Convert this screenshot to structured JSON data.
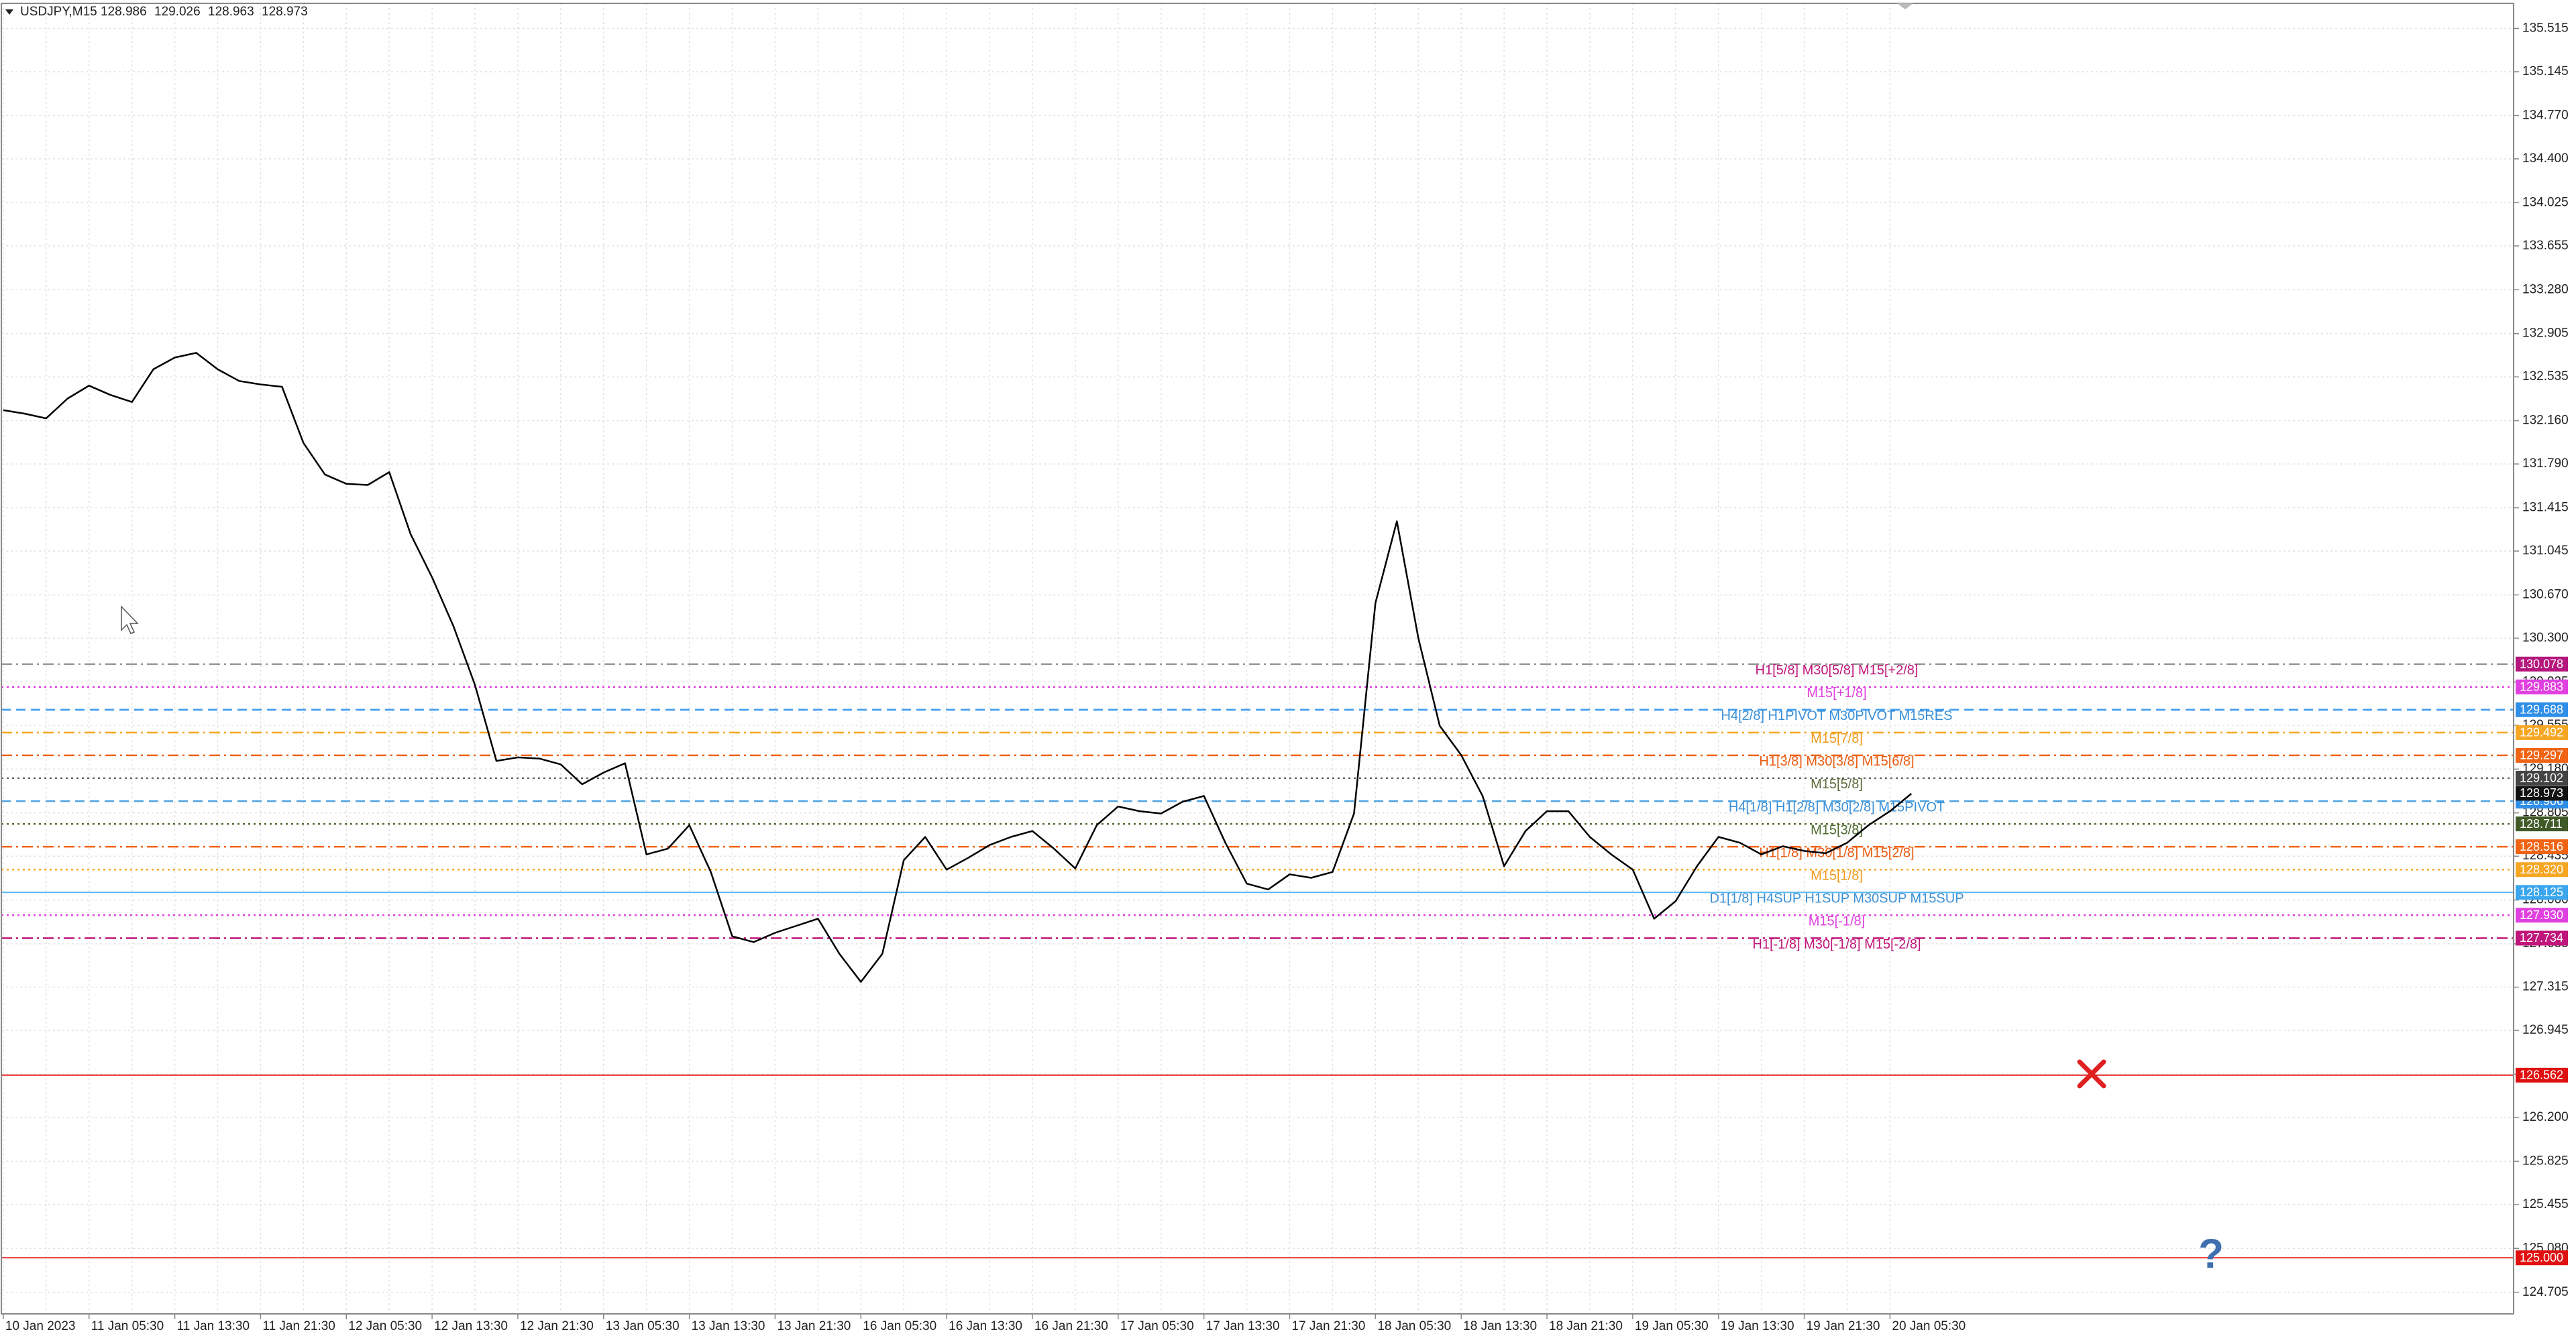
{
  "chart_data": {
    "type": "line",
    "title": "USDJPY,M15",
    "quote": [
      128.986,
      129.026,
      128.963,
      128.973
    ],
    "color": "#000000",
    "categories": [
      "10 Jan 2023",
      null,
      null,
      null,
      "11 Jan 05:30",
      null,
      null,
      null,
      "11 Jan 13:30",
      null,
      null,
      null,
      "11 Jan 21:30",
      null,
      null,
      null,
      "12 Jan 05:30",
      null,
      null,
      null,
      "12 Jan 13:30",
      null,
      null,
      null,
      "12 Jan 21:30",
      null,
      null,
      null,
      "13 Jan 05:30",
      null,
      null,
      null,
      "13 Jan 13:30",
      null,
      null,
      null,
      "13 Jan 21:30",
      null,
      null,
      null,
      "16 Jan 05:30",
      null,
      null,
      null,
      "16 Jan 13:30",
      null,
      null,
      null,
      "16 Jan 21:30",
      null,
      null,
      null,
      "17 Jan 05:30",
      null,
      null,
      null,
      "17 Jan 13:30",
      null,
      null,
      null,
      "17 Jan 21:30",
      null,
      null,
      null,
      "18 Jan 05:30",
      null,
      null,
      null,
      "18 Jan 13:30",
      null,
      null,
      null,
      "18 Jan 21:30",
      null,
      null,
      null,
      "19 Jan 05:30",
      null,
      null,
      null,
      "19 Jan 13:30",
      null,
      null,
      null,
      "19 Jan 21:30",
      null,
      null,
      null,
      "20 Jan 05:30",
      null
    ],
    "values": [
      132.25,
      132.22,
      132.18,
      132.35,
      132.46,
      132.38,
      132.32,
      132.6,
      132.7,
      132.74,
      132.6,
      132.5,
      132.47,
      132.45,
      131.97,
      131.7,
      131.62,
      131.61,
      131.72,
      131.19,
      130.82,
      130.4,
      129.9,
      129.25,
      129.28,
      129.27,
      129.22,
      129.05,
      129.15,
      129.23,
      128.45,
      128.5,
      128.7,
      128.3,
      127.75,
      127.7,
      127.78,
      127.84,
      127.9,
      127.6,
      127.36,
      127.6,
      128.4,
      128.6,
      128.32,
      128.42,
      128.53,
      128.6,
      128.65,
      128.5,
      128.33,
      128.7,
      128.86,
      128.82,
      128.8,
      128.9,
      128.95,
      128.55,
      128.2,
      128.15,
      128.28,
      128.25,
      128.3,
      128.8,
      130.6,
      131.3,
      130.3,
      129.55,
      129.3,
      128.95,
      128.35,
      128.65,
      128.82,
      128.82,
      128.6,
      128.45,
      128.32,
      127.9,
      128.05,
      128.35,
      128.6,
      128.55,
      128.45,
      128.52,
      128.48,
      128.46,
      128.55,
      128.7,
      128.82,
      128.97
    ],
    "ylim": [
      124.52,
      135.73
    ],
    "yticks": [
      135.515,
      135.145,
      {
        "value": 134.77,
        "label": "134.770"
      },
      {
        "value": 134.4,
        "label": "134.400"
      },
      134.025,
      133.655,
      {
        "value": 133.28,
        "label": "133.280"
      },
      132.905,
      132.535,
      {
        "value": 132.16,
        "label": "132.160"
      },
      {
        "value": 131.79,
        "label": "131.790"
      },
      131.415,
      131.045,
      {
        "value": 130.67,
        "label": "130.670"
      },
      {
        "value": 130.3,
        "label": "130.300"
      },
      129.925,
      129.555,
      {
        "value": 129.18,
        "label": "129.180"
      },
      128.805,
      128.435,
      {
        "value": 128.06,
        "label": "128.060"
      },
      127.685,
      127.315,
      126.945,
      {
        "value": 126.57,
        "label": "126.570"
      },
      {
        "value": 126.2,
        "label": "126.200"
      },
      125.825,
      125.455,
      {
        "value": 125.08,
        "label": "125.080"
      },
      124.705
    ],
    "grid": true,
    "levels": [
      {
        "label": "H1[5/8] M30[5/8] M15[+2/8]",
        "value": 130.078,
        "tag": "130.078",
        "color": "#999999",
        "text_color": "#c0157a",
        "tag_color": "#b5177d",
        "dash": "dashdot"
      },
      {
        "label": "M15[+1/8]",
        "value": 129.883,
        "tag": "129.883",
        "color": "#e040e0",
        "text_color": "#e040e0",
        "tag_color": "#e040e0",
        "dash": "dotted"
      },
      {
        "label": "H4[2/8] H1PIVOT M30PIVOT M15RES",
        "value": 129.688,
        "tag": "129.688",
        "color": "#3a9af0",
        "text_color": "#3a8fd6",
        "tag_color": "#2f8fe8",
        "dash": "dashed"
      },
      {
        "label": "M15[7/8]",
        "value": 129.492,
        "tag": "129.492",
        "color": "#f5a623",
        "text_color": "#f0991a",
        "tag_color": "#f5a623",
        "dash": "dashdot"
      },
      {
        "label": "H1[3/8] M30[3/8] M15[6/8]",
        "value": 129.297,
        "tag": "129.297",
        "color": "#f06414",
        "text_color": "#e85a10",
        "tag_color": "#f06414",
        "dash": "dashdot"
      },
      {
        "label": "M15[5/8]",
        "value": 129.102,
        "tag": "129.102",
        "color": "#666666",
        "text_color": "#5a6b3a",
        "tag_color": "#444444",
        "dash": "dotted"
      },
      {
        "label": "H4[1/8] H1[2/8] M30[2/8] M15PIVOT",
        "value": 128.906,
        "tag": "128.906",
        "color": "#4fa3e0",
        "text_color": "#3a8fd6",
        "tag_color": "#2f8fe8",
        "dash": "dashed"
      },
      {
        "label": "M15[3/8]",
        "value": 128.711,
        "tag": "128.711",
        "color": "#4d6b2f",
        "text_color": "#4d6b2f",
        "tag_color": "#3f5a26",
        "dash": "dotted"
      },
      {
        "label": "H1[1/8] M30[1/8] M15[2/8]",
        "value": 128.516,
        "tag": "128.516",
        "color": "#f06414",
        "text_color": "#e85a10",
        "tag_color": "#f06414",
        "dash": "dashdot"
      },
      {
        "label": "M15[1/8]",
        "value": 128.32,
        "tag": "128.320",
        "color": "#f5a623",
        "text_color": "#f0991a",
        "tag_color": "#f5a623",
        "dash": "dotted"
      },
      {
        "label": "D1[1/8] H4SUP H1SUP M30SUP M15SUP",
        "value": 128.125,
        "tag": "128.125",
        "color": "#5bb8f0",
        "text_color": "#3a8fd6",
        "tag_color": "#3aa6ee",
        "dash": "solid"
      },
      {
        "label": "M15[-1/8]",
        "value": 127.93,
        "tag": "127.930",
        "color": "#e040e0",
        "text_color": "#e040e0",
        "tag_color": "#e040e0",
        "dash": "dotted"
      },
      {
        "label": "H1[-1/8] M30[-1/8] M15[-2/8]",
        "value": 127.734,
        "tag": "127.734",
        "color": "#c0157a",
        "text_color": "#c0157a",
        "tag_color": "#c0157a",
        "dash": "dashdot"
      },
      {
        "value": 126.562,
        "tag": "126.562",
        "color": "#e83030",
        "tag_color": "#e01010",
        "dash": "solid"
      },
      {
        "value": 125.0,
        "tag": "125.000",
        "color": "#e83030",
        "tag_color": "#e01010",
        "dash": "solid"
      }
    ]
  }
}
